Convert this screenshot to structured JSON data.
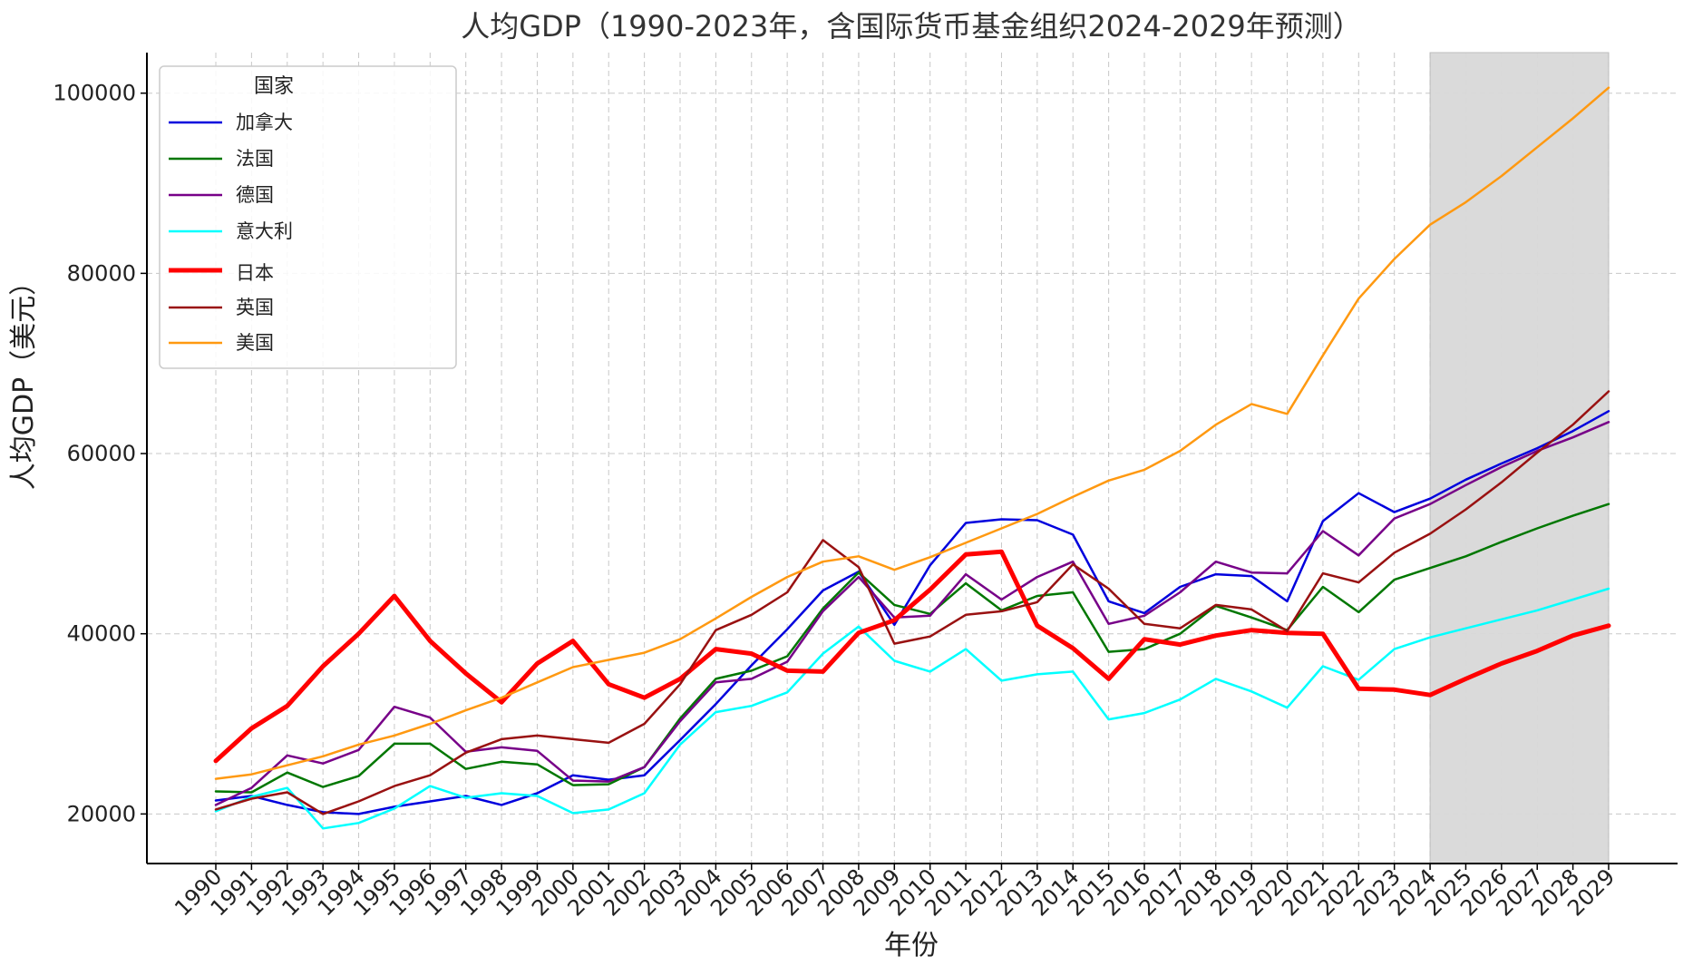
{
  "chart_data": {
    "type": "line",
    "title": "人均GDP（1990-2023年，含国际货币基金组织2024-2029年预测）",
    "xlabel": "年份",
    "ylabel": "人均GDP（美元）",
    "ylim": [
      14500,
      104500
    ],
    "xlim": [
      1990,
      2029
    ],
    "y_ticks": [
      20000,
      40000,
      60000,
      80000,
      100000
    ],
    "grid": true,
    "legend_title": "国家",
    "legend_position": "top-left",
    "forecast_range": [
      2024,
      2029
    ],
    "forecast_shade_color": "#d9d9d9",
    "x": [
      1990,
      1991,
      1992,
      1993,
      1994,
      1995,
      1996,
      1997,
      1998,
      1999,
      2000,
      2001,
      2002,
      2003,
      2004,
      2005,
      2006,
      2007,
      2008,
      2009,
      2010,
      2011,
      2012,
      2013,
      2014,
      2015,
      2016,
      2017,
      2018,
      2019,
      2020,
      2021,
      2022,
      2023,
      2024,
      2025,
      2026,
      2027,
      2028,
      2029
    ],
    "series": [
      {
        "name": "加拿大",
        "color": "#0000dd",
        "width": 2.5,
        "values": [
          21500,
          22000,
          21000,
          20200,
          20000,
          20800,
          21400,
          22000,
          21000,
          22300,
          24300,
          23800,
          24300,
          28200,
          32200,
          36500,
          40500,
          44800,
          46900,
          41000,
          47600,
          52300,
          52700,
          52600,
          51000,
          43600,
          42300,
          45200,
          46600,
          46400,
          43600,
          52500,
          55600,
          53500,
          55000,
          57100,
          58900,
          60600,
          62500,
          64700
        ]
      },
      {
        "name": "法国",
        "color": "#007700",
        "width": 2.5,
        "values": [
          22500,
          22400,
          24600,
          23000,
          24200,
          27800,
          27800,
          25000,
          25800,
          25500,
          23200,
          23300,
          25200,
          30600,
          35000,
          35900,
          37500,
          42800,
          46800,
          43200,
          42200,
          45600,
          42600,
          44200,
          44600,
          38000,
          38300,
          40000,
          43100,
          41800,
          40400,
          45200,
          42400,
          46000,
          47300,
          48600,
          50200,
          51700,
          53100,
          54400
        ]
      },
      {
        "name": "德国",
        "color": "#770088",
        "width": 2.5,
        "values": [
          21000,
          22900,
          26500,
          25600,
          27100,
          31900,
          30700,
          26900,
          27400,
          27000,
          23700,
          23600,
          25200,
          30300,
          34600,
          35000,
          36900,
          42500,
          46300,
          41800,
          42000,
          46600,
          43800,
          46300,
          48000,
          41100,
          42000,
          44600,
          48000,
          46800,
          46700,
          51400,
          48700,
          52800,
          54400,
          56500,
          58500,
          60300,
          61800,
          63500
        ]
      },
      {
        "name": "意大利",
        "color": "#00ffff",
        "width": 2.5,
        "values": [
          20300,
          21900,
          22900,
          18400,
          19000,
          20600,
          23100,
          21800,
          22300,
          22000,
          20100,
          20500,
          22300,
          27700,
          31300,
          32000,
          33500,
          37800,
          40800,
          37000,
          35800,
          38300,
          34800,
          35500,
          35800,
          30500,
          31200,
          32700,
          35000,
          33600,
          31800,
          36400,
          34900,
          38300,
          39600,
          40600,
          41600,
          42600,
          43800,
          45000
        ]
      },
      {
        "name": "日本",
        "color": "#ff0000",
        "width": 5,
        "values": [
          25900,
          29500,
          32000,
          36400,
          40000,
          44200,
          39200,
          35600,
          32400,
          36700,
          39200,
          34400,
          32900,
          35000,
          38300,
          37800,
          35900,
          35800,
          40100,
          41500,
          44900,
          48800,
          49100,
          40900,
          38400,
          35000,
          39400,
          38800,
          39800,
          40400,
          40100,
          40000,
          33900,
          33800,
          33200,
          35000,
          36700,
          38100,
          39800,
          40900
        ]
      },
      {
        "name": "英国",
        "color": "#991111",
        "width": 2.5,
        "values": [
          20500,
          21700,
          22400,
          20000,
          21400,
          23100,
          24300,
          26800,
          28300,
          28700,
          28300,
          27900,
          30000,
          34400,
          40400,
          42100,
          44600,
          50400,
          47400,
          38900,
          39700,
          42100,
          42500,
          43500,
          47700,
          45000,
          41100,
          40600,
          43200,
          42700,
          40300,
          46700,
          45700,
          49000,
          51100,
          53800,
          56800,
          60100,
          63200,
          66900
        ]
      },
      {
        "name": "美国",
        "color": "#ff9911",
        "width": 2.5,
        "values": [
          23900,
          24400,
          25400,
          26400,
          27700,
          28700,
          30000,
          31500,
          32900,
          34600,
          36300,
          37100,
          37900,
          39400,
          41700,
          44100,
          46300,
          48000,
          48600,
          47100,
          48500,
          50100,
          51700,
          53300,
          55200,
          57000,
          58200,
          60300,
          63200,
          65500,
          64400,
          70900,
          77200,
          81600,
          85400,
          87900,
          90800,
          94000,
          97200,
          100600
        ]
      }
    ]
  }
}
